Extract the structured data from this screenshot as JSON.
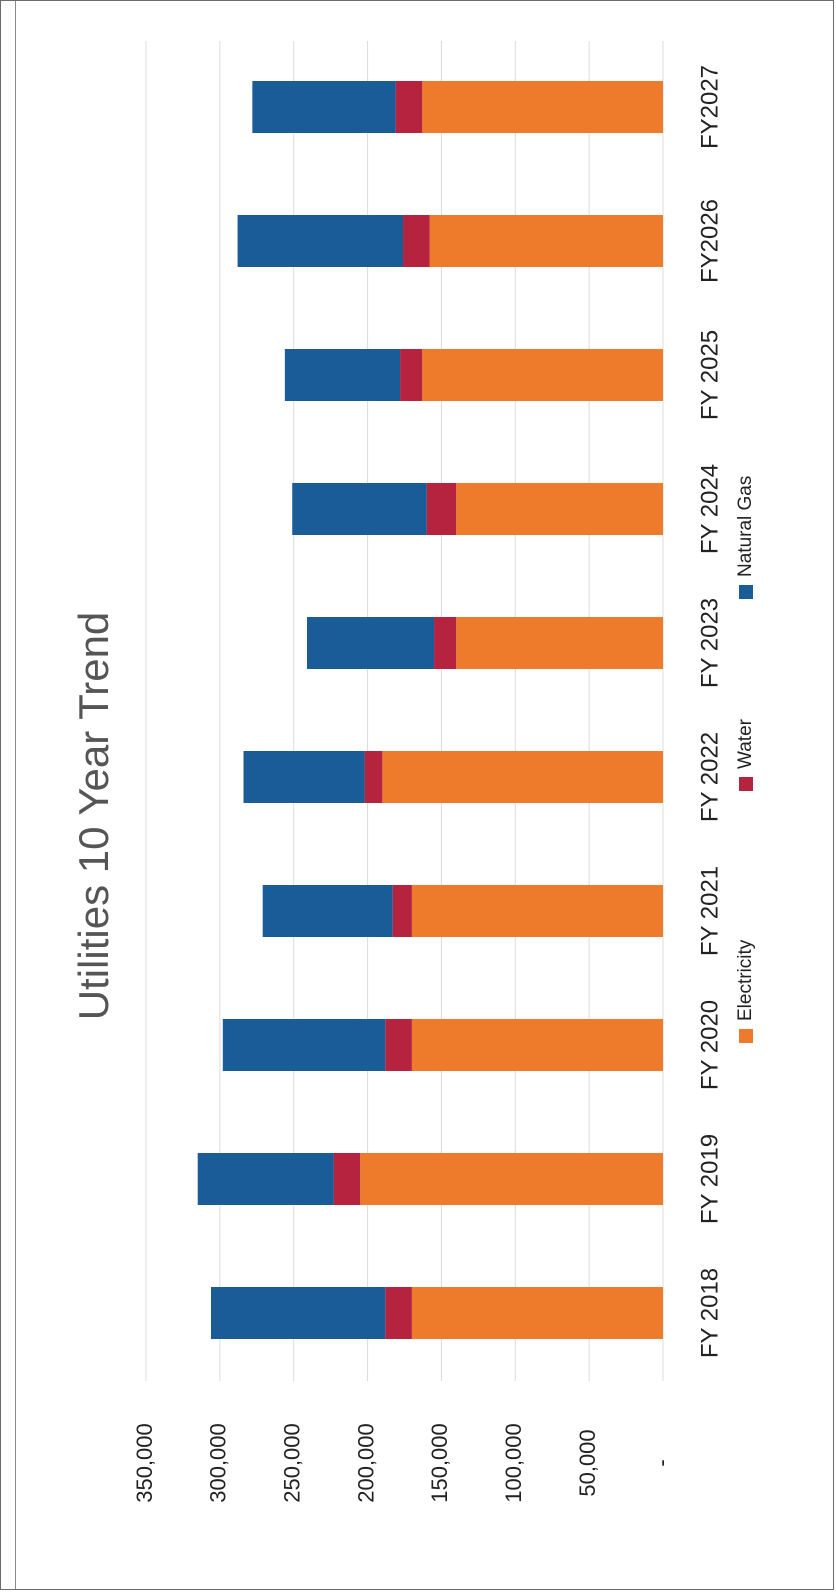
{
  "chart_data": {
    "type": "bar",
    "stacked": true,
    "orientation": "vertical, rotated 90° clockwise on the page",
    "title": "Utilities 10 Year Trend",
    "xlabel": "",
    "ylabel": "",
    "categories": [
      "FY 2018",
      "FY 2019",
      "FY 2020",
      "FY 2021",
      "FY 2022",
      "FY 2023",
      "FY 2024",
      "FY 2025",
      "FY2026",
      "FY2027"
    ],
    "series": [
      {
        "name": "Electricity",
        "color": "#ee7a2c",
        "values": [
          170000,
          205000,
          170000,
          170000,
          190000,
          140000,
          140000,
          163000,
          158000,
          163000
        ]
      },
      {
        "name": "Water",
        "color": "#b5233f",
        "values": [
          18000,
          18000,
          18000,
          13000,
          12000,
          15000,
          20000,
          15000,
          18000,
          18000
        ]
      },
      {
        "name": "Natural Gas",
        "color": "#1a5c97",
        "values": [
          118000,
          92000,
          110000,
          88000,
          82000,
          86000,
          91000,
          78000,
          112000,
          97000
        ]
      }
    ],
    "y_ticks": [
      0,
      50000,
      100000,
      150000,
      200000,
      250000,
      300000,
      350000
    ],
    "y_tick_labels": [
      "-",
      "50,000",
      "100,000",
      "150,000",
      "200,000",
      "250,000",
      "300,000",
      "350,000"
    ],
    "ylim": [
      0,
      350000
    ],
    "grid": true,
    "legend": {
      "position": "bottom",
      "entries": [
        "Electricity",
        "Water",
        "Natural Gas"
      ]
    }
  }
}
